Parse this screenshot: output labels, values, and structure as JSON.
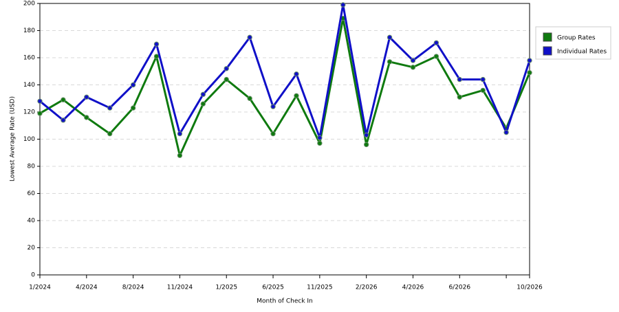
{
  "chart_data": {
    "type": "line",
    "x_label": "Month of Check In",
    "y_label": "Lowest Average Rate (USD)",
    "categories": [
      "1/2024",
      null,
      "4/2024",
      null,
      "8/2024",
      null,
      "11/2024",
      null,
      "1/2025",
      null,
      "6/2025",
      null,
      "11/2025",
      null,
      "2/2026",
      null,
      "4/2026",
      null,
      "6/2026",
      null,
      null,
      "10/2026"
    ],
    "series": [
      {
        "name": "Group Rates",
        "color": "#0f7a0f",
        "values": [
          119,
          129,
          116,
          104,
          123,
          161,
          88,
          126,
          144,
          130,
          104,
          132,
          97,
          189,
          96,
          157,
          153,
          161,
          131,
          136,
          108,
          149
        ]
      },
      {
        "name": "Individual Rates",
        "color": "#1010c8",
        "values": [
          128,
          114,
          131,
          123,
          140,
          170,
          104,
          133,
          152,
          175,
          124,
          148,
          101,
          199,
          103,
          175,
          158,
          171,
          144,
          144,
          105,
          158
        ]
      }
    ],
    "ylim": [
      0,
      200
    ],
    "yticks": [
      0,
      20,
      40,
      60,
      80,
      100,
      120,
      140,
      160,
      180,
      200
    ],
    "grid": true,
    "legend": "right"
  }
}
